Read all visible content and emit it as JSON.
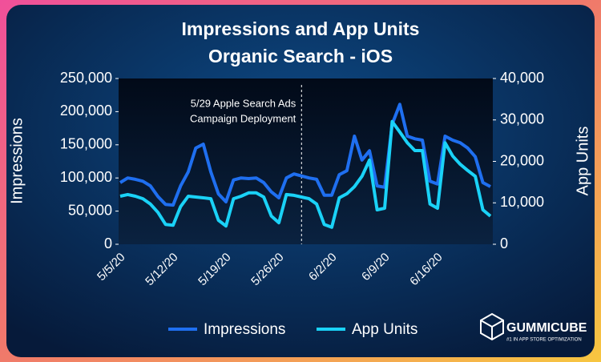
{
  "chart_data": {
    "type": "line",
    "title": "Impressions and App Units",
    "subtitle": "Organic Search - iOS",
    "y_label": "Impressions",
    "y2_label": "App Units",
    "annotation": [
      "5/29 Apple Search Ads",
      "Campaign Deployment"
    ],
    "categories": [
      "5/5/20",
      null,
      null,
      null,
      null,
      null,
      null,
      "5/12/20",
      null,
      null,
      null,
      null,
      null,
      null,
      "5/19/20",
      null,
      null,
      null,
      null,
      null,
      null,
      "5/26/20",
      null,
      null,
      null,
      null,
      null,
      null,
      "6/2/20",
      null,
      null,
      null,
      null,
      null,
      null,
      "6/9/20",
      null,
      null,
      null,
      null,
      null,
      null,
      "6/16/20",
      null,
      null,
      null,
      null,
      null,
      null,
      null
    ],
    "ylim": [
      0,
      250000
    ],
    "yticks": [
      0,
      {
        "value": 50000,
        "label": "50,000"
      },
      {
        "value": 100000,
        "label": "100,000"
      },
      {
        "value": 150000,
        "label": "150,000"
      },
      {
        "value": 200000,
        "label": "200,000"
      },
      {
        "value": 250000,
        "label": "250,000"
      }
    ],
    "y2lim": [
      0,
      40000
    ],
    "y2ticks": [
      0,
      {
        "value": 10000,
        "label": "10,000"
      },
      {
        "value": 20000,
        "label": "20,000"
      },
      {
        "value": 30000,
        "label": "30,000"
      },
      {
        "value": 40000,
        "label": "40,000"
      }
    ],
    "legend": "bottom",
    "series": [
      {
        "name": "Impressions",
        "color": "#1f6ff0",
        "values": [
          93000,
          100000,
          98000,
          95000,
          88000,
          72000,
          60000,
          59000,
          88000,
          109000,
          145000,
          151000,
          109000,
          76000,
          64000,
          97000,
          100000,
          99000,
          100000,
          93000,
          79000,
          70000,
          100000,
          106000,
          103000,
          100000,
          98000,
          74000,
          74000,
          105000,
          111000,
          163000,
          127000,
          141000,
          88000,
          86000,
          181000,
          211000,
          163000,
          159000,
          157000,
          95000,
          91000,
          163000,
          157000,
          153000,
          145000,
          132000,
          93000,
          87000
        ]
      },
      {
        "name": "App Units",
        "color": "#1ad2f7",
        "axis": "y2",
        "values": [
          11600,
          12000,
          11600,
          11000,
          9700,
          7700,
          4800,
          4600,
          9100,
          11600,
          11400,
          11200,
          11000,
          5800,
          4400,
          11000,
          11600,
          12400,
          12400,
          11400,
          6800,
          5200,
          12000,
          11800,
          11400,
          11000,
          9700,
          4800,
          4100,
          11200,
          12200,
          13900,
          16400,
          20300,
          8300,
          8700,
          29600,
          27100,
          24500,
          22600,
          22600,
          9700,
          8700,
          24500,
          21300,
          19300,
          17800,
          16400,
          8300,
          6800
        ]
      }
    ]
  },
  "logo": {
    "name": "GUMMICUBE",
    "tagline": "#1 IN APP STORE OPTIMIZATION"
  }
}
